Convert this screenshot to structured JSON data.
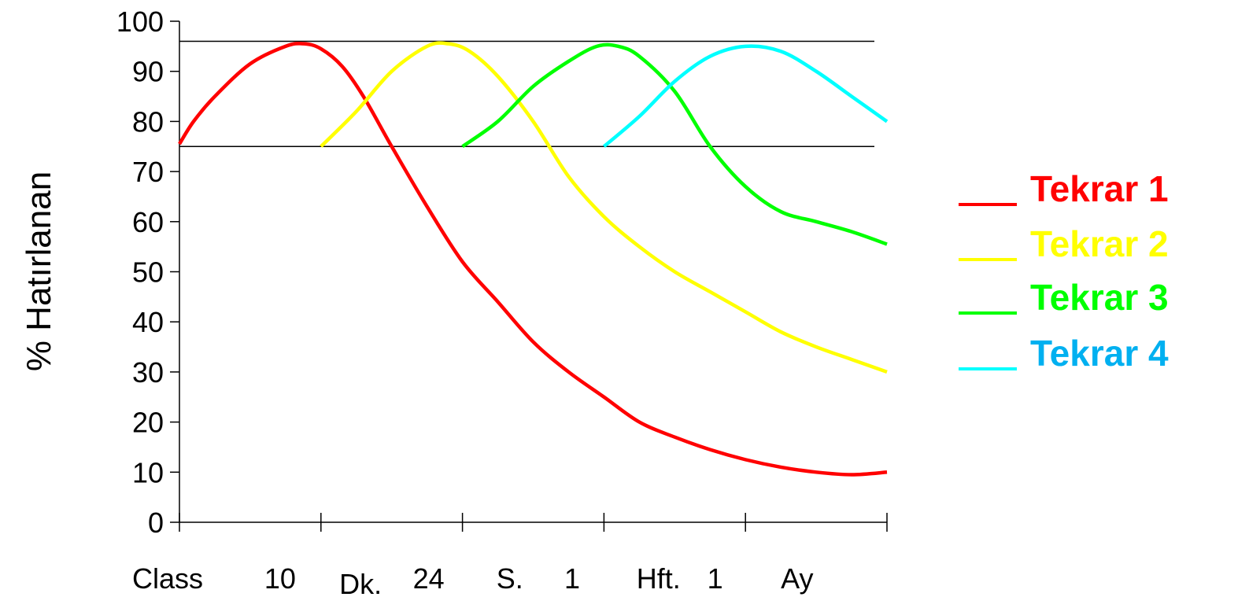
{
  "chart_data": {
    "type": "line",
    "ylabel": "% Hatırlanan",
    "ylim": [
      0,
      100
    ],
    "yticks": [
      "0",
      "10",
      "20",
      "30",
      "40",
      "50",
      "60",
      "70",
      "80",
      "90",
      "100"
    ],
    "xlim": [
      0,
      5
    ],
    "x_tick_labels": [
      {
        "text": "Class",
        "x": 0.0
      },
      {
        "text": "10",
        "x": 0.6
      },
      {
        "text": "Dk.",
        "x": 1.13
      },
      {
        "text": "24",
        "x": 1.65
      },
      {
        "text": "S.",
        "x": 2.24
      },
      {
        "text": "1",
        "x": 2.72
      },
      {
        "text": "Hft.",
        "x": 3.23
      },
      {
        "text": "1",
        "x": 3.73
      },
      {
        "text": "Ay",
        "x": 4.25
      }
    ],
    "reference_lines": [
      96,
      75
    ],
    "grid": false,
    "legend_position": "right",
    "series": [
      {
        "name": "Tekrar 1",
        "color": "#FF0000",
        "points": [
          [
            0,
            75.5
          ],
          [
            0.1,
            80
          ],
          [
            0.25,
            85
          ],
          [
            0.5,
            91.5
          ],
          [
            0.75,
            95
          ],
          [
            0.88,
            95.5
          ],
          [
            1.0,
            94.5
          ],
          [
            1.15,
            91
          ],
          [
            1.3,
            85
          ],
          [
            1.5,
            75
          ],
          [
            1.75,
            63
          ],
          [
            2.0,
            52
          ],
          [
            2.25,
            44
          ],
          [
            2.5,
            36
          ],
          [
            2.75,
            30
          ],
          [
            3.0,
            25
          ],
          [
            3.25,
            20
          ],
          [
            3.5,
            17
          ],
          [
            3.75,
            14.5
          ],
          [
            4.0,
            12.5
          ],
          [
            4.25,
            11
          ],
          [
            4.5,
            10
          ],
          [
            4.75,
            9.5
          ],
          [
            5.0,
            10
          ]
        ]
      },
      {
        "name": "Tekrar 2",
        "color": "#FFFF00",
        "points": [
          [
            1.0,
            75
          ],
          [
            1.25,
            82
          ],
          [
            1.5,
            90
          ],
          [
            1.75,
            95
          ],
          [
            1.9,
            95.5
          ],
          [
            2.05,
            94
          ],
          [
            2.25,
            89
          ],
          [
            2.5,
            80
          ],
          [
            2.75,
            69
          ],
          [
            3.0,
            61
          ],
          [
            3.25,
            55
          ],
          [
            3.5,
            50
          ],
          [
            3.75,
            46
          ],
          [
            4.0,
            42
          ],
          [
            4.25,
            38
          ],
          [
            4.5,
            35
          ],
          [
            4.75,
            32.5
          ],
          [
            5.0,
            30
          ]
        ]
      },
      {
        "name": "Tekrar 3",
        "color": "#00FF00",
        "points": [
          [
            2.0,
            75
          ],
          [
            2.25,
            80
          ],
          [
            2.5,
            87
          ],
          [
            2.75,
            92
          ],
          [
            2.95,
            95
          ],
          [
            3.1,
            95
          ],
          [
            3.25,
            93
          ],
          [
            3.5,
            86
          ],
          [
            3.75,
            75
          ],
          [
            4.0,
            67
          ],
          [
            4.25,
            62
          ],
          [
            4.5,
            60
          ],
          [
            4.75,
            58
          ],
          [
            5.0,
            55.5
          ]
        ]
      },
      {
        "name": "Tekrar 4",
        "color": "#00FFFF",
        "points": [
          [
            3.0,
            75
          ],
          [
            3.25,
            81
          ],
          [
            3.5,
            88
          ],
          [
            3.75,
            93
          ],
          [
            4.0,
            95
          ],
          [
            4.25,
            94
          ],
          [
            4.5,
            90
          ],
          [
            4.75,
            85
          ],
          [
            5.0,
            80
          ]
        ]
      }
    ]
  },
  "legend": {
    "items": [
      {
        "label": "Tekrar 1",
        "color": "#FF0000"
      },
      {
        "label": "Tekrar 2",
        "color": "#FFFF00"
      },
      {
        "label": "Tekrar 3",
        "color": "#00FF00"
      },
      {
        "label": "Tekrar 4",
        "color": "#00B0F0",
        "line_color": "#00FFFF"
      }
    ]
  }
}
